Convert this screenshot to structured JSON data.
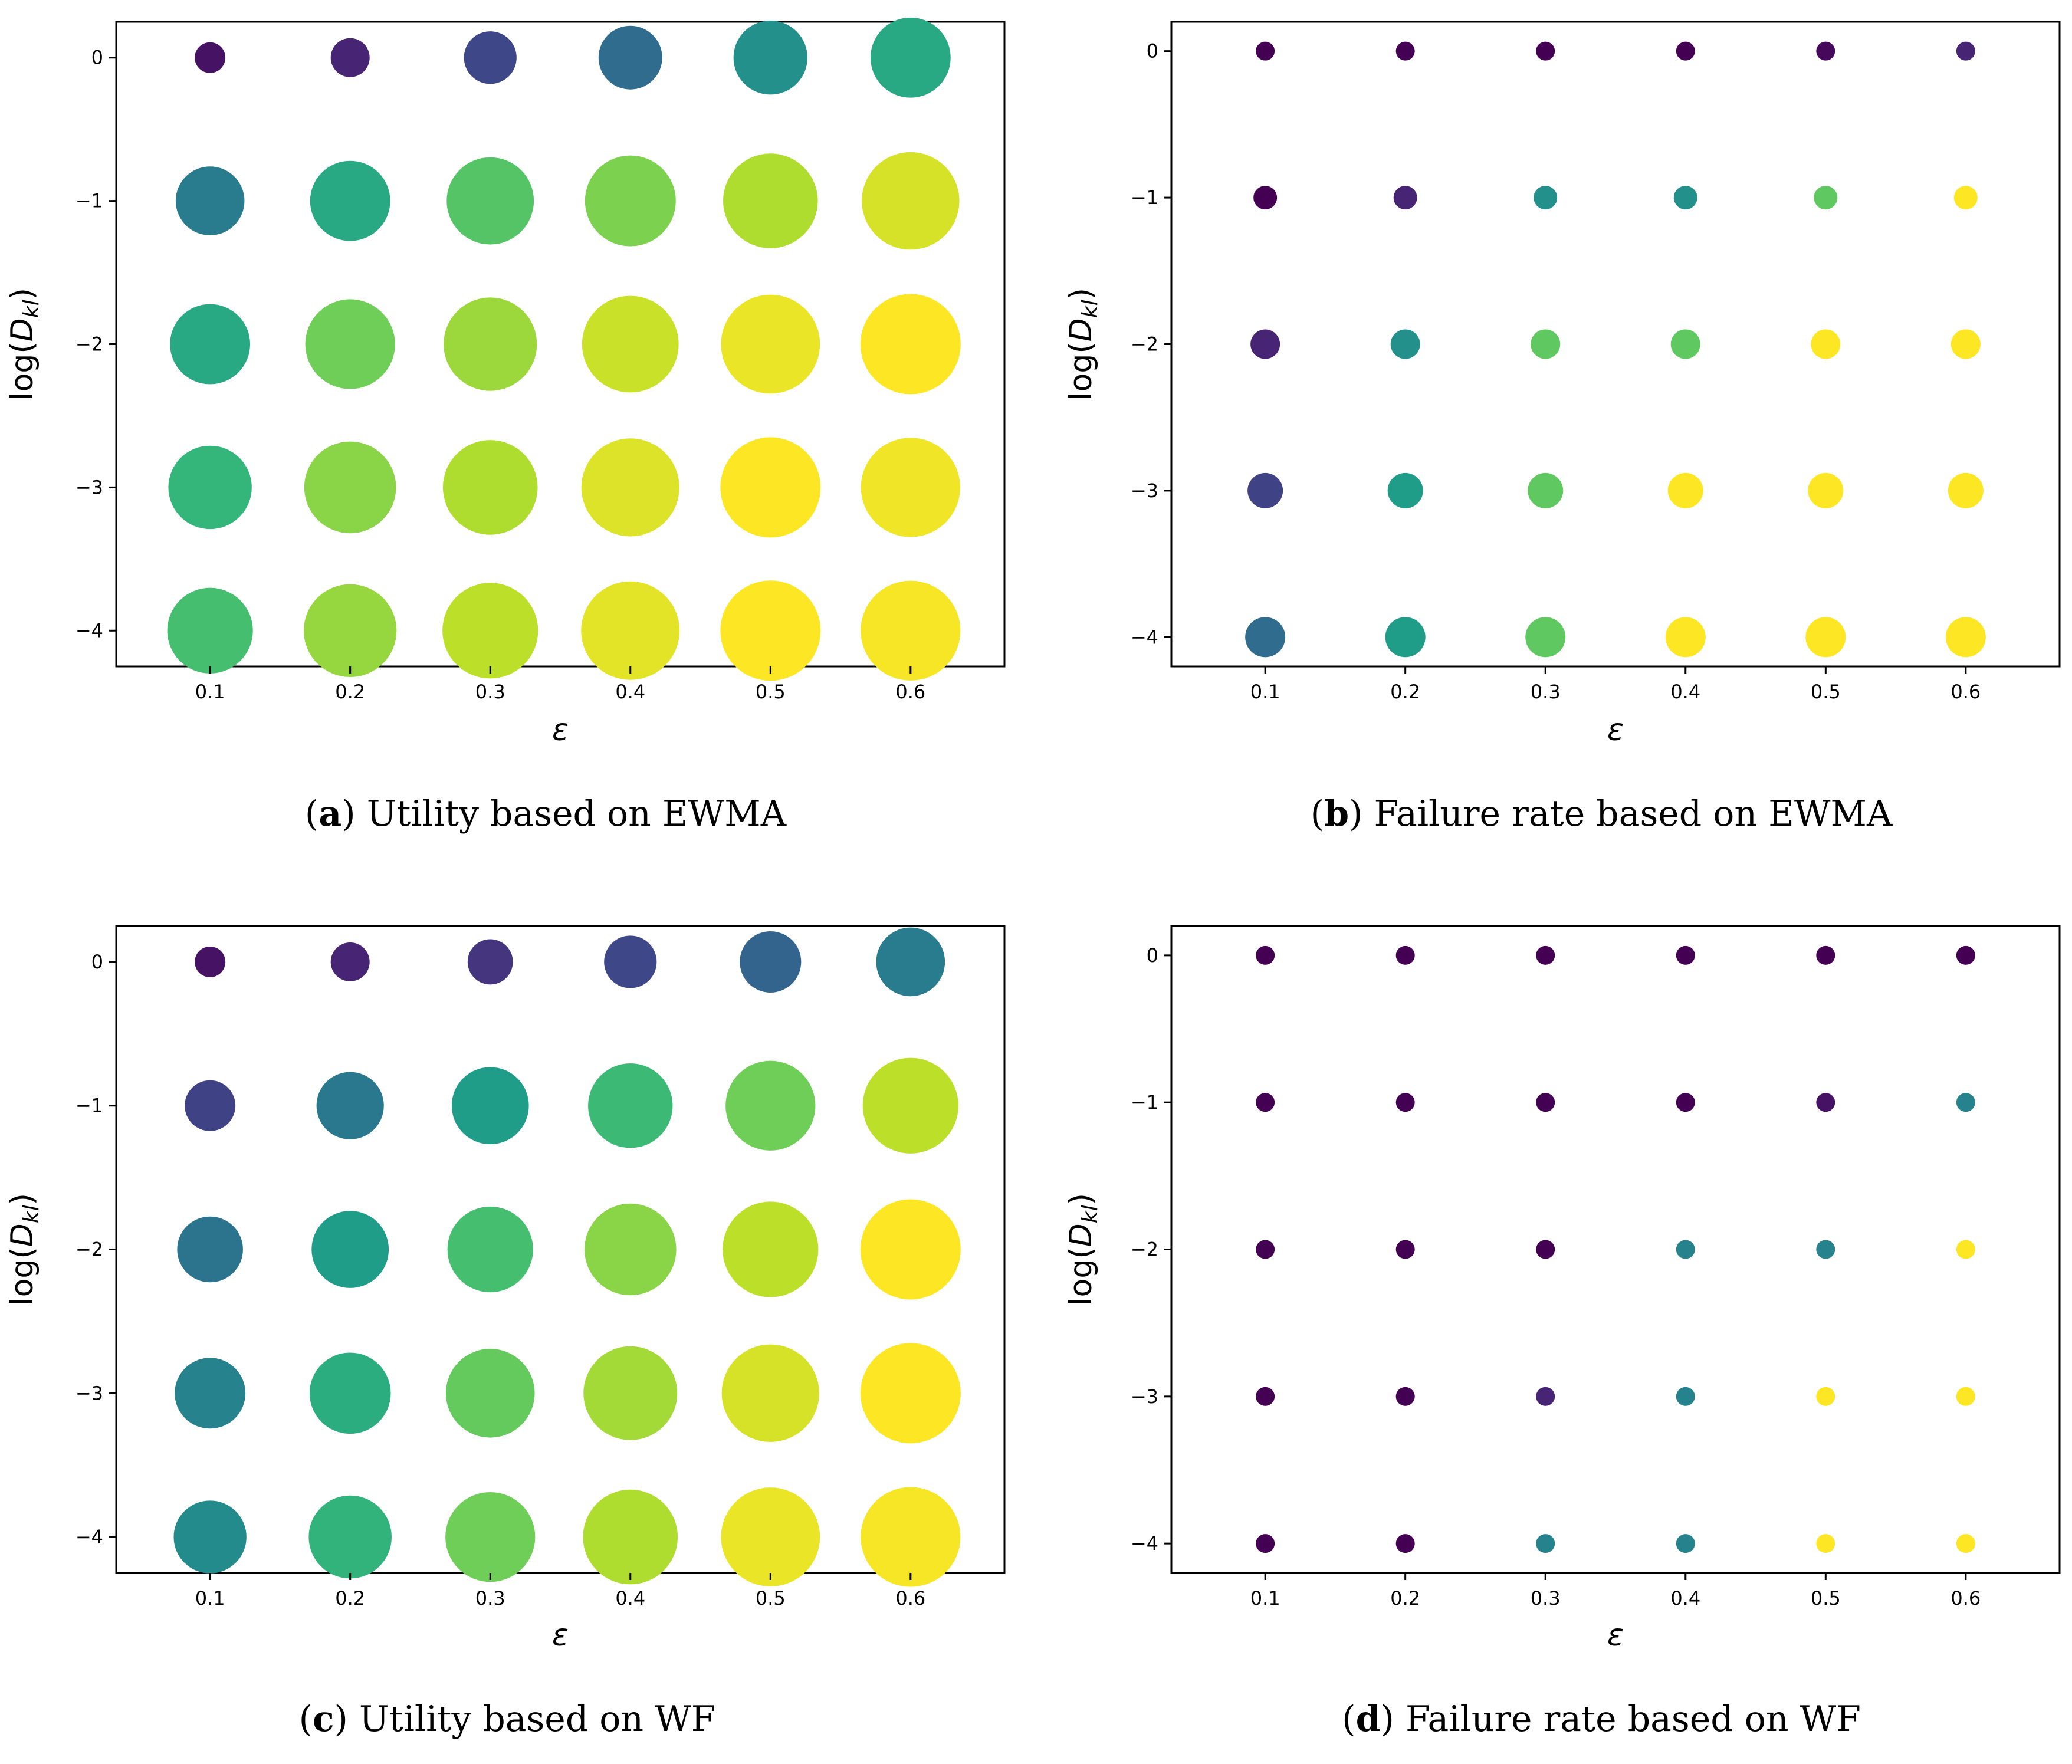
{
  "chart_data": [
    {
      "type": "scatter",
      "encoding": "size_and_color",
      "title": "Utility based on EWMA",
      "caption_label": "a",
      "caption_text": "Utility based on EWMA",
      "xlabel": "ε",
      "ylabel": "log(D_kl)",
      "ylabel_main": "log(",
      "ylabel_sym": "D",
      "ylabel_sub": "kl",
      "ylabel_close": ")",
      "xticks": [
        "0.1",
        "0.2",
        "0.3",
        "0.4",
        "0.5",
        "0.6"
      ],
      "yticks": [
        "0",
        "−1",
        "−2",
        "−3",
        "−4"
      ],
      "xlim": [
        0.033,
        0.667
      ],
      "ylim": [
        -4.25,
        0.25
      ],
      "x": [
        0.1,
        0.2,
        0.3,
        0.4,
        0.5,
        0.6
      ],
      "y": [
        0,
        -1,
        -2,
        -3,
        -4
      ],
      "values": [
        [
          0.05,
          0.1,
          0.22,
          0.35,
          0.5,
          0.6
        ],
        [
          0.42,
          0.6,
          0.73,
          0.8,
          0.88,
          0.94
        ],
        [
          0.6,
          0.78,
          0.85,
          0.92,
          0.97,
          1.0
        ],
        [
          0.66,
          0.82,
          0.88,
          0.95,
          1.0,
          0.98
        ],
        [
          0.7,
          0.84,
          0.9,
          0.96,
          1.0,
          0.99
        ]
      ]
    },
    {
      "type": "scatter",
      "encoding": "size_and_color",
      "title": "Failure rate based on EWMA",
      "caption_label": "b",
      "caption_text": "Failure rate based on EWMA",
      "xlabel": "ε",
      "ylabel": "log(D_kl)",
      "ylabel_main": "log(",
      "ylabel_sym": "D",
      "ylabel_sub": "kl",
      "ylabel_close": ")",
      "xticks": [
        "0.1",
        "0.2",
        "0.3",
        "0.4",
        "0.5",
        "0.6"
      ],
      "yticks": [
        "0",
        "−1",
        "−2",
        "−3",
        "−4"
      ],
      "xlim": [
        0.033,
        0.667
      ],
      "ylim": [
        -4.2,
        0.2
      ],
      "x": [
        0.1,
        0.2,
        0.3,
        0.4,
        0.5,
        0.6
      ],
      "y": [
        0,
        -1,
        -2,
        -3,
        -4
      ],
      "values": [
        [
          0.0,
          0.0,
          0.0,
          0.0,
          0.02,
          0.1
        ],
        [
          0.0,
          0.1,
          0.5,
          0.5,
          0.75,
          1.0
        ],
        [
          0.1,
          0.5,
          0.75,
          0.75,
          1.0,
          1.0
        ],
        [
          0.2,
          0.55,
          0.75,
          1.0,
          1.0,
          1.0
        ],
        [
          0.35,
          0.55,
          0.75,
          1.0,
          1.0,
          1.0
        ]
      ]
    },
    {
      "type": "scatter",
      "encoding": "size_and_color",
      "title": "Utility based on WF",
      "caption_label": "c",
      "caption_text": "Utility based on WF",
      "xlabel": "ε",
      "ylabel": "log(D_kl)",
      "ylabel_main": "log(",
      "ylabel_sym": "D",
      "ylabel_sub": "kl",
      "ylabel_close": ")",
      "xticks": [
        "0.1",
        "0.2",
        "0.3",
        "0.4",
        "0.5",
        "0.6"
      ],
      "yticks": [
        "0",
        "−1",
        "−2",
        "−3",
        "−4"
      ],
      "xlim": [
        0.033,
        0.667
      ],
      "ylim": [
        -4.25,
        0.25
      ],
      "x": [
        0.1,
        0.2,
        0.3,
        0.4,
        0.5,
        0.6
      ],
      "y": [
        0,
        -1,
        -2,
        -3,
        -4
      ],
      "values": [
        [
          0.05,
          0.1,
          0.15,
          0.22,
          0.32,
          0.42
        ],
        [
          0.2,
          0.4,
          0.55,
          0.68,
          0.78,
          0.9
        ],
        [
          0.38,
          0.55,
          0.7,
          0.82,
          0.9,
          1.0
        ],
        [
          0.45,
          0.62,
          0.76,
          0.86,
          0.94,
          1.0
        ],
        [
          0.48,
          0.65,
          0.78,
          0.88,
          0.97,
          0.99
        ]
      ]
    },
    {
      "type": "scatter",
      "encoding": "size_and_color",
      "title": "Failure rate based on WF",
      "caption_label": "d",
      "caption_text": "Failure rate based on WF",
      "xlabel": "ε",
      "ylabel": "log(D_kl)",
      "ylabel_main": "log(",
      "ylabel_sym": "D",
      "ylabel_sub": "kl",
      "ylabel_close": ")",
      "xticks": [
        "0.1",
        "0.2",
        "0.3",
        "0.4",
        "0.5",
        "0.6"
      ],
      "yticks": [
        "0",
        "−1",
        "−2",
        "−3",
        "−4"
      ],
      "xlim": [
        0.033,
        0.667
      ],
      "ylim": [
        -4.2,
        0.2
      ],
      "x": [
        0.1,
        0.2,
        0.3,
        0.4,
        0.5,
        0.6
      ],
      "y": [
        0,
        -1,
        -2,
        -3,
        -4
      ],
      "values": [
        [
          0.0,
          0.0,
          0.0,
          0.0,
          0.0,
          0.0
        ],
        [
          0.0,
          0.0,
          0.0,
          0.0,
          0.05,
          0.45
        ],
        [
          0.0,
          0.0,
          0.0,
          0.45,
          0.45,
          1.0
        ],
        [
          0.0,
          0.0,
          0.1,
          0.45,
          1.0,
          1.0
        ],
        [
          0.0,
          0.0,
          0.45,
          0.45,
          1.0,
          1.0
        ]
      ]
    }
  ],
  "colormap": {
    "name": "viridis",
    "stops": [
      "#440154",
      "#482878",
      "#3e4989",
      "#31688e",
      "#26828e",
      "#1f9e89",
      "#35b779",
      "#6ece58",
      "#b5de2b",
      "#fde725"
    ]
  }
}
